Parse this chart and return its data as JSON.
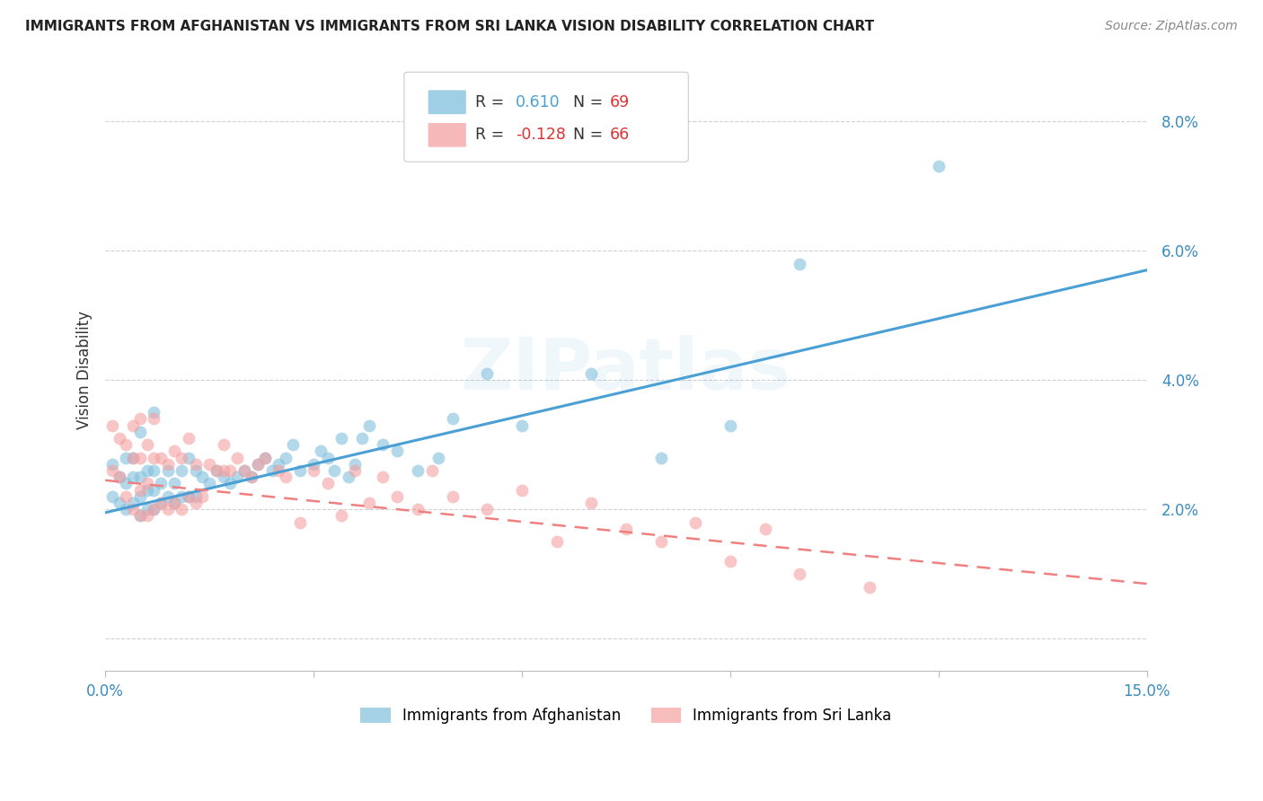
{
  "title": "IMMIGRANTS FROM AFGHANISTAN VS IMMIGRANTS FROM SRI LANKA VISION DISABILITY CORRELATION CHART",
  "source": "Source: ZipAtlas.com",
  "ylabel_label": "Vision Disability",
  "x_min": 0.0,
  "x_max": 0.15,
  "y_min": -0.005,
  "y_max": 0.088,
  "x_ticks": [
    0.0,
    0.03,
    0.06,
    0.09,
    0.12,
    0.15
  ],
  "y_ticks": [
    0.0,
    0.02,
    0.04,
    0.06,
    0.08
  ],
  "afghanistan_color": "#7fbfdd",
  "srilanka_color": "#f4a0a0",
  "watermark": "ZIPatlas",
  "background_color": "#ffffff",
  "afghanistan_scatter_x": [
    0.001,
    0.001,
    0.002,
    0.002,
    0.003,
    0.003,
    0.003,
    0.004,
    0.004,
    0.004,
    0.005,
    0.005,
    0.005,
    0.005,
    0.006,
    0.006,
    0.006,
    0.007,
    0.007,
    0.007,
    0.007,
    0.008,
    0.008,
    0.009,
    0.009,
    0.01,
    0.01,
    0.011,
    0.011,
    0.012,
    0.012,
    0.013,
    0.013,
    0.014,
    0.015,
    0.016,
    0.017,
    0.018,
    0.019,
    0.02,
    0.021,
    0.022,
    0.023,
    0.024,
    0.025,
    0.026,
    0.027,
    0.028,
    0.03,
    0.031,
    0.032,
    0.033,
    0.034,
    0.035,
    0.036,
    0.037,
    0.038,
    0.04,
    0.042,
    0.045,
    0.048,
    0.05,
    0.055,
    0.06,
    0.07,
    0.08,
    0.09,
    0.1,
    0.12
  ],
  "afghanistan_scatter_y": [
    0.022,
    0.027,
    0.021,
    0.025,
    0.02,
    0.024,
    0.028,
    0.021,
    0.025,
    0.028,
    0.019,
    0.022,
    0.025,
    0.032,
    0.02,
    0.023,
    0.026,
    0.02,
    0.023,
    0.026,
    0.035,
    0.021,
    0.024,
    0.022,
    0.026,
    0.021,
    0.024,
    0.022,
    0.026,
    0.022,
    0.028,
    0.022,
    0.026,
    0.025,
    0.024,
    0.026,
    0.025,
    0.024,
    0.025,
    0.026,
    0.025,
    0.027,
    0.028,
    0.026,
    0.027,
    0.028,
    0.03,
    0.026,
    0.027,
    0.029,
    0.028,
    0.026,
    0.031,
    0.025,
    0.027,
    0.031,
    0.033,
    0.03,
    0.029,
    0.026,
    0.028,
    0.034,
    0.041,
    0.033,
    0.041,
    0.028,
    0.033,
    0.058,
    0.073
  ],
  "srilanka_scatter_x": [
    0.001,
    0.001,
    0.002,
    0.002,
    0.003,
    0.003,
    0.004,
    0.004,
    0.004,
    0.005,
    0.005,
    0.005,
    0.005,
    0.006,
    0.006,
    0.006,
    0.007,
    0.007,
    0.007,
    0.008,
    0.008,
    0.009,
    0.009,
    0.01,
    0.01,
    0.011,
    0.011,
    0.012,
    0.012,
    0.013,
    0.013,
    0.014,
    0.015,
    0.016,
    0.017,
    0.017,
    0.018,
    0.019,
    0.02,
    0.021,
    0.022,
    0.023,
    0.025,
    0.026,
    0.028,
    0.03,
    0.032,
    0.034,
    0.036,
    0.038,
    0.04,
    0.042,
    0.045,
    0.047,
    0.05,
    0.055,
    0.06,
    0.065,
    0.07,
    0.075,
    0.08,
    0.085,
    0.09,
    0.095,
    0.1,
    0.11
  ],
  "srilanka_scatter_y": [
    0.026,
    0.033,
    0.025,
    0.031,
    0.022,
    0.03,
    0.02,
    0.028,
    0.033,
    0.019,
    0.023,
    0.028,
    0.034,
    0.019,
    0.024,
    0.03,
    0.02,
    0.028,
    0.034,
    0.021,
    0.028,
    0.02,
    0.027,
    0.021,
    0.029,
    0.02,
    0.028,
    0.022,
    0.031,
    0.021,
    0.027,
    0.022,
    0.027,
    0.026,
    0.03,
    0.026,
    0.026,
    0.028,
    0.026,
    0.025,
    0.027,
    0.028,
    0.026,
    0.025,
    0.018,
    0.026,
    0.024,
    0.019,
    0.026,
    0.021,
    0.025,
    0.022,
    0.02,
    0.026,
    0.022,
    0.02,
    0.023,
    0.015,
    0.021,
    0.017,
    0.015,
    0.018,
    0.012,
    0.017,
    0.01,
    0.008
  ],
  "afg_trendline_x": [
    0.0,
    0.15
  ],
  "afg_trendline_y": [
    0.0195,
    0.057
  ],
  "slk_trendline_x": [
    0.0,
    0.15
  ],
  "slk_trendline_y": [
    0.0245,
    0.0085
  ]
}
